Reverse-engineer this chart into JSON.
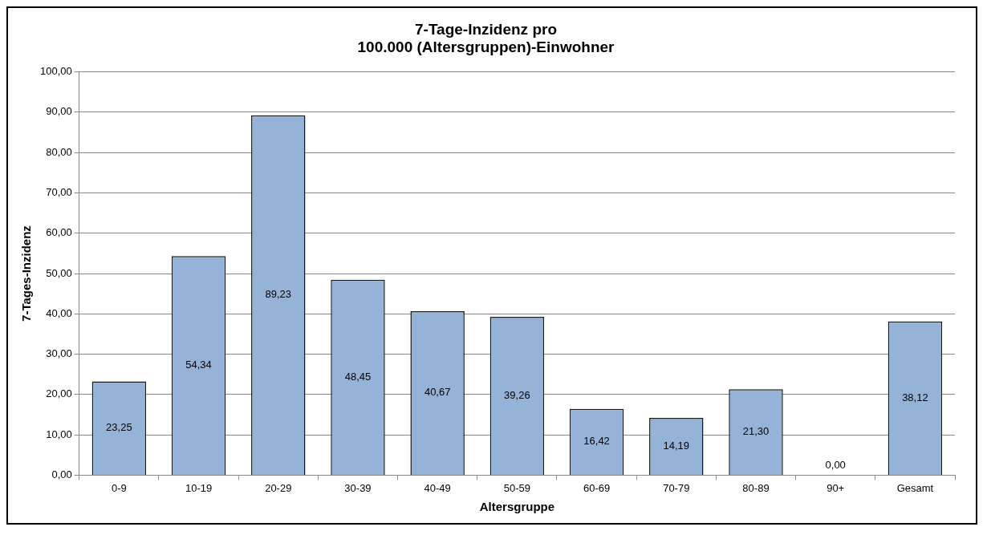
{
  "chart_data": {
    "type": "bar",
    "title": "7-Tage-Inzidenz pro\n100.000 (Altersgruppen)-Einwohner",
    "xlabel": "Altersgruppe",
    "ylabel": "7-Tages-Inzidenz",
    "categories": [
      "0-9",
      "10-19",
      "20-29",
      "30-39",
      "40-49",
      "50-59",
      "60-69",
      "70-79",
      "80-89",
      "90+",
      "Gesamt"
    ],
    "values": [
      23.25,
      54.34,
      89.23,
      48.45,
      40.67,
      39.26,
      16.42,
      14.19,
      21.3,
      0,
      38.12
    ],
    "value_labels": [
      "23,25",
      "54,34",
      "89,23",
      "48,45",
      "40,67",
      "39,26",
      "16,42",
      "14,19",
      "21,30",
      "0,00",
      "38,12"
    ],
    "color": "#95b3d7",
    "ylim": [
      0,
      100
    ],
    "yticks": [
      {
        "value": 0,
        "label": "0,00"
      },
      {
        "value": 10,
        "label": "10,00"
      },
      {
        "value": 20,
        "label": "20,00"
      },
      {
        "value": 30,
        "label": "30,00"
      },
      {
        "value": 40,
        "label": "40,00"
      },
      {
        "value": 50,
        "label": "50,00"
      },
      {
        "value": 60,
        "label": "60,00"
      },
      {
        "value": 70,
        "label": "70,00"
      },
      {
        "value": 80,
        "label": "80,00"
      },
      {
        "value": 90,
        "label": "90,00"
      },
      {
        "value": 100,
        "label": "100,00"
      }
    ],
    "grid": "y",
    "legend": false
  }
}
